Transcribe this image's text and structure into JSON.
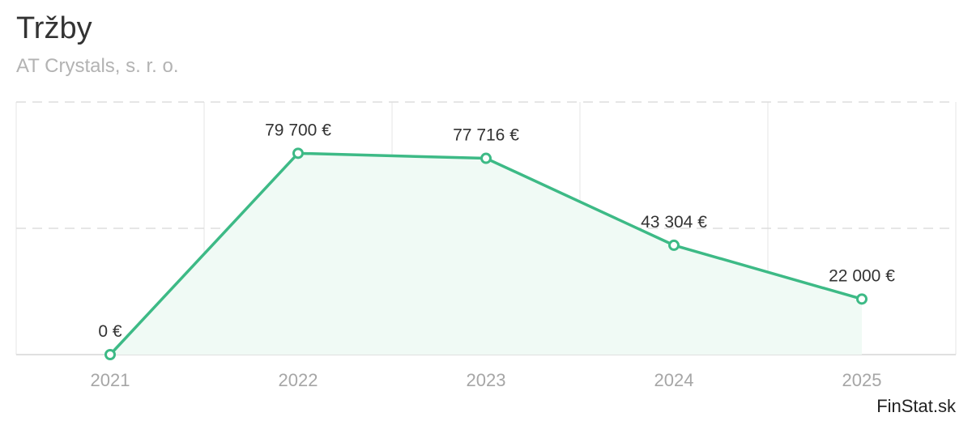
{
  "title": "Tržby",
  "subtitle": "AT Crystals, s. r. o.",
  "credit": "FinStat.sk",
  "colors": {
    "line": "#3dba86",
    "area": "#f0faf5",
    "grid": "#e6e6e6"
  },
  "chart_data": {
    "type": "area",
    "title": "Tržby",
    "subtitle": "AT Crystals, s. r. o.",
    "categories": [
      "2021",
      "2022",
      "2023",
      "2024",
      "2025"
    ],
    "series": [
      {
        "values": [
          0,
          79700,
          77716,
          43304,
          22000
        ],
        "labels": [
          "0 €",
          "79 700 €",
          "77 716 €",
          "43 304 €",
          "22 000 €"
        ]
      }
    ],
    "ylim": [
      0,
      100000
    ],
    "grid": true,
    "legend": "none"
  }
}
